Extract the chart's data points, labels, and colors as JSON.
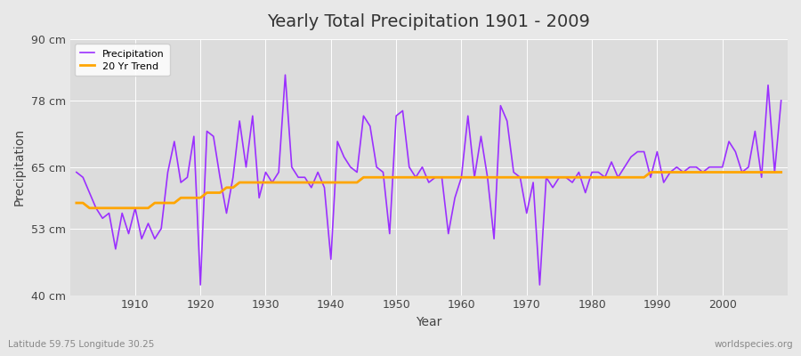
{
  "title": "Yearly Total Precipitation 1901 - 2009",
  "xlabel": "Year",
  "ylabel": "Precipitation",
  "subtitle": "Latitude 59.75 Longitude 30.25",
  "watermark": "worldspecies.org",
  "line_color": "#9B30FF",
  "trend_color": "#FFA500",
  "bg_color": "#E8E8E8",
  "plot_bg_color": "#DCDCDC",
  "ylim": [
    40,
    90
  ],
  "yticks": [
    40,
    53,
    65,
    78,
    90
  ],
  "ytick_labels": [
    "40 cm",
    "53 cm",
    "65 cm",
    "78 cm",
    "90 cm"
  ],
  "years": [
    1901,
    1902,
    1903,
    1904,
    1905,
    1906,
    1907,
    1908,
    1909,
    1910,
    1911,
    1912,
    1913,
    1914,
    1915,
    1916,
    1917,
    1918,
    1919,
    1920,
    1921,
    1922,
    1923,
    1924,
    1925,
    1926,
    1927,
    1928,
    1929,
    1930,
    1931,
    1932,
    1933,
    1934,
    1935,
    1936,
    1937,
    1938,
    1939,
    1940,
    1941,
    1942,
    1943,
    1944,
    1945,
    1946,
    1947,
    1948,
    1949,
    1950,
    1951,
    1952,
    1953,
    1954,
    1955,
    1956,
    1957,
    1958,
    1959,
    1960,
    1961,
    1962,
    1963,
    1964,
    1965,
    1966,
    1967,
    1968,
    1969,
    1970,
    1971,
    1972,
    1973,
    1974,
    1975,
    1976,
    1977,
    1978,
    1979,
    1980,
    1981,
    1982,
    1983,
    1984,
    1985,
    1986,
    1987,
    1988,
    1989,
    1990,
    1991,
    1992,
    1993,
    1994,
    1995,
    1996,
    1997,
    1998,
    1999,
    2000,
    2001,
    2002,
    2003,
    2004,
    2005,
    2006,
    2007,
    2008,
    2009
  ],
  "precip": [
    64,
    63,
    60,
    57,
    55,
    56,
    49,
    56,
    52,
    57,
    51,
    54,
    51,
    53,
    64,
    70,
    62,
    63,
    71,
    42,
    72,
    71,
    63,
    56,
    63,
    74,
    65,
    75,
    59,
    64,
    62,
    64,
    83,
    65,
    63,
    63,
    61,
    64,
    61,
    47,
    70,
    67,
    65,
    64,
    75,
    73,
    65,
    64,
    52,
    75,
    76,
    65,
    63,
    65,
    62,
    63,
    63,
    52,
    59,
    63,
    75,
    63,
    71,
    63,
    51,
    77,
    74,
    64,
    63,
    56,
    62,
    42,
    63,
    61,
    63,
    63,
    62,
    64,
    60,
    64,
    64,
    63,
    66,
    63,
    65,
    67,
    68,
    68,
    63,
    68,
    62,
    64,
    65,
    64,
    65,
    65,
    64,
    65,
    65,
    65,
    70,
    68,
    64,
    65,
    72,
    63,
    81,
    64,
    78
  ],
  "trend": [
    58,
    58,
    57,
    57,
    57,
    57,
    57,
    57,
    57,
    57,
    57,
    57,
    58,
    58,
    58,
    58,
    59,
    59,
    59,
    59,
    60,
    60,
    60,
    61,
    61,
    62,
    62,
    62,
    62,
    62,
    62,
    62,
    62,
    62,
    62,
    62,
    62,
    62,
    62,
    62,
    62,
    62,
    62,
    62,
    63,
    63,
    63,
    63,
    63,
    63,
    63,
    63,
    63,
    63,
    63,
    63,
    63,
    63,
    63,
    63,
    63,
    63,
    63,
    63,
    63,
    63,
    63,
    63,
    63,
    63,
    63,
    63,
    63,
    63,
    63,
    63,
    63,
    63,
    63,
    63,
    63,
    63,
    63,
    63,
    63,
    63,
    63,
    63,
    64,
    64,
    64,
    64,
    64,
    64,
    64,
    64,
    64,
    64,
    64,
    64,
    64,
    64,
    64,
    64,
    64,
    64,
    64,
    64,
    64
  ]
}
